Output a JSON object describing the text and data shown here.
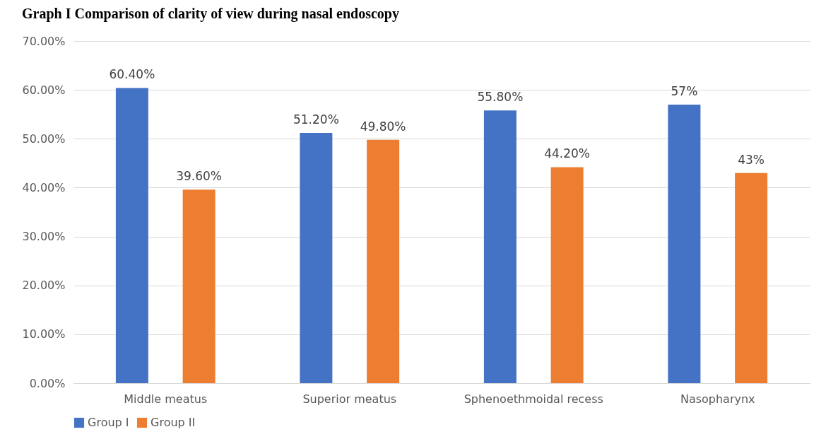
{
  "chart_data": {
    "type": "bar",
    "title": "Graph I Comparison of clarity of view during nasal endoscopy",
    "categories": [
      "Middle meatus",
      "Superior meatus",
      "Sphenoethmoidal recess",
      "Nasopharynx"
    ],
    "series": [
      {
        "name": "Group I",
        "color": "#4472c4",
        "values": [
          60.4,
          51.2,
          55.8,
          57
        ],
        "value_labels": [
          "60.40%",
          "51.20%",
          "55.80%",
          "57%"
        ]
      },
      {
        "name": "Group II",
        "color": "#ed7d31",
        "values": [
          39.6,
          49.8,
          44.2,
          43
        ],
        "value_labels": [
          "39.60%",
          "49.80%",
          "44.20%",
          "43%"
        ]
      }
    ],
    "ylim": [
      0,
      70
    ],
    "yticks": [
      {
        "value": 0,
        "label": "0.00%"
      },
      {
        "value": 10,
        "label": "10.00%"
      },
      {
        "value": 20,
        "label": "20.00%"
      },
      {
        "value": 30,
        "label": "30.00%"
      },
      {
        "value": 40,
        "label": "40.00%"
      },
      {
        "value": 50,
        "label": "50.00%"
      },
      {
        "value": 60,
        "label": "60.00%"
      },
      {
        "value": 70,
        "label": "70.00%"
      }
    ],
    "grid": "y",
    "legend": "bottom"
  }
}
